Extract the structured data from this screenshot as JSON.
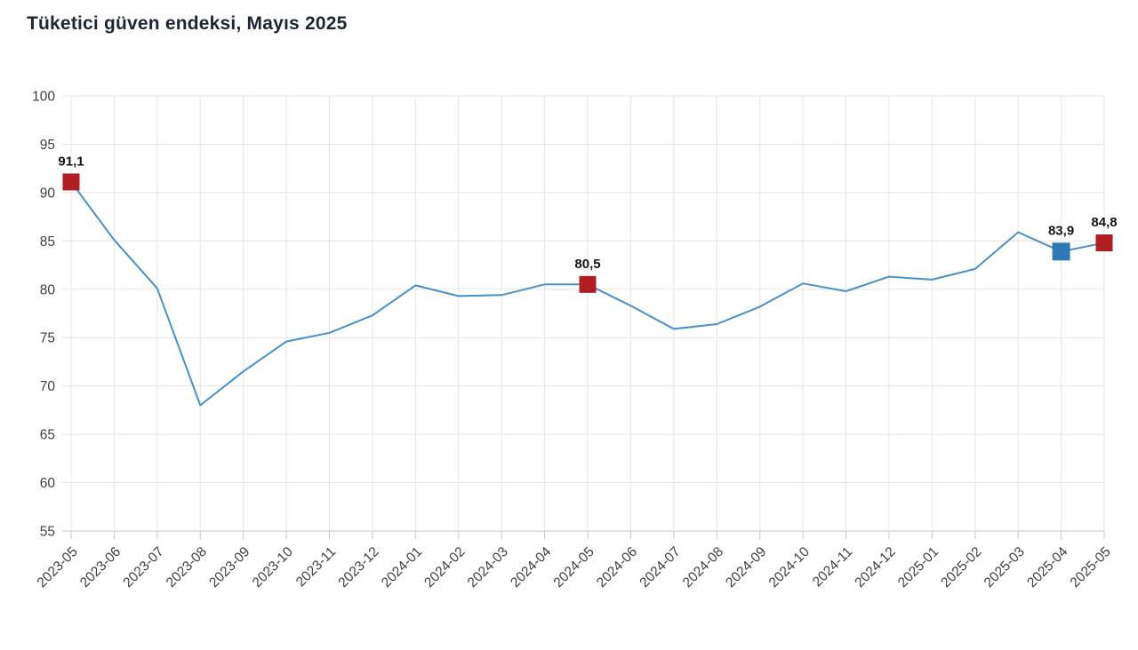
{
  "title": "Tüketici güven endeksi, Mayıs 2025",
  "chart_data": {
    "type": "line",
    "title": "Tüketici güven endeksi, Mayıs 2025",
    "xlabel": "",
    "ylabel": "",
    "grid": true,
    "legend": "none",
    "ylim": [
      55,
      100
    ],
    "y_ticks": [
      100,
      95,
      90,
      85,
      80,
      75,
      70,
      65,
      60,
      55
    ],
    "categories": [
      "2023-05",
      "2023-06",
      "2023-07",
      "2023-08",
      "2023-09",
      "2023-10",
      "2023-11",
      "2023-12",
      "2024-01",
      "2024-02",
      "2024-03",
      "2024-04",
      "2024-05",
      "2024-06",
      "2024-07",
      "2024-08",
      "2024-09",
      "2024-10",
      "2024-11",
      "2024-12",
      "2025-01",
      "2025-02",
      "2025-03",
      "2025-04",
      "2025-05"
    ],
    "values": [
      91.1,
      85.1,
      80.1,
      68.0,
      71.5,
      74.6,
      75.5,
      77.3,
      80.4,
      79.3,
      79.4,
      80.5,
      80.5,
      78.3,
      75.9,
      76.4,
      78.2,
      80.6,
      79.8,
      81.3,
      81.0,
      82.1,
      85.9,
      83.9,
      84.8
    ],
    "line_color": "#4a90c8",
    "grid_color": "#e5e5e5",
    "axis_color": "#c6c6c6",
    "tick_label_color": "#3f3f3f",
    "annotations": [
      {
        "index": 0,
        "label": "91,1",
        "marker": "square",
        "color": "#b01e23",
        "size": 19
      },
      {
        "index": 12,
        "label": "80,5",
        "marker": "square",
        "color": "#b01e23",
        "size": 19
      },
      {
        "index": 23,
        "label": "83,9",
        "marker": "square",
        "color": "#2e78b8",
        "size": 20
      },
      {
        "index": 24,
        "label": "84,8",
        "marker": "square",
        "color": "#b01e23",
        "size": 19
      }
    ]
  }
}
